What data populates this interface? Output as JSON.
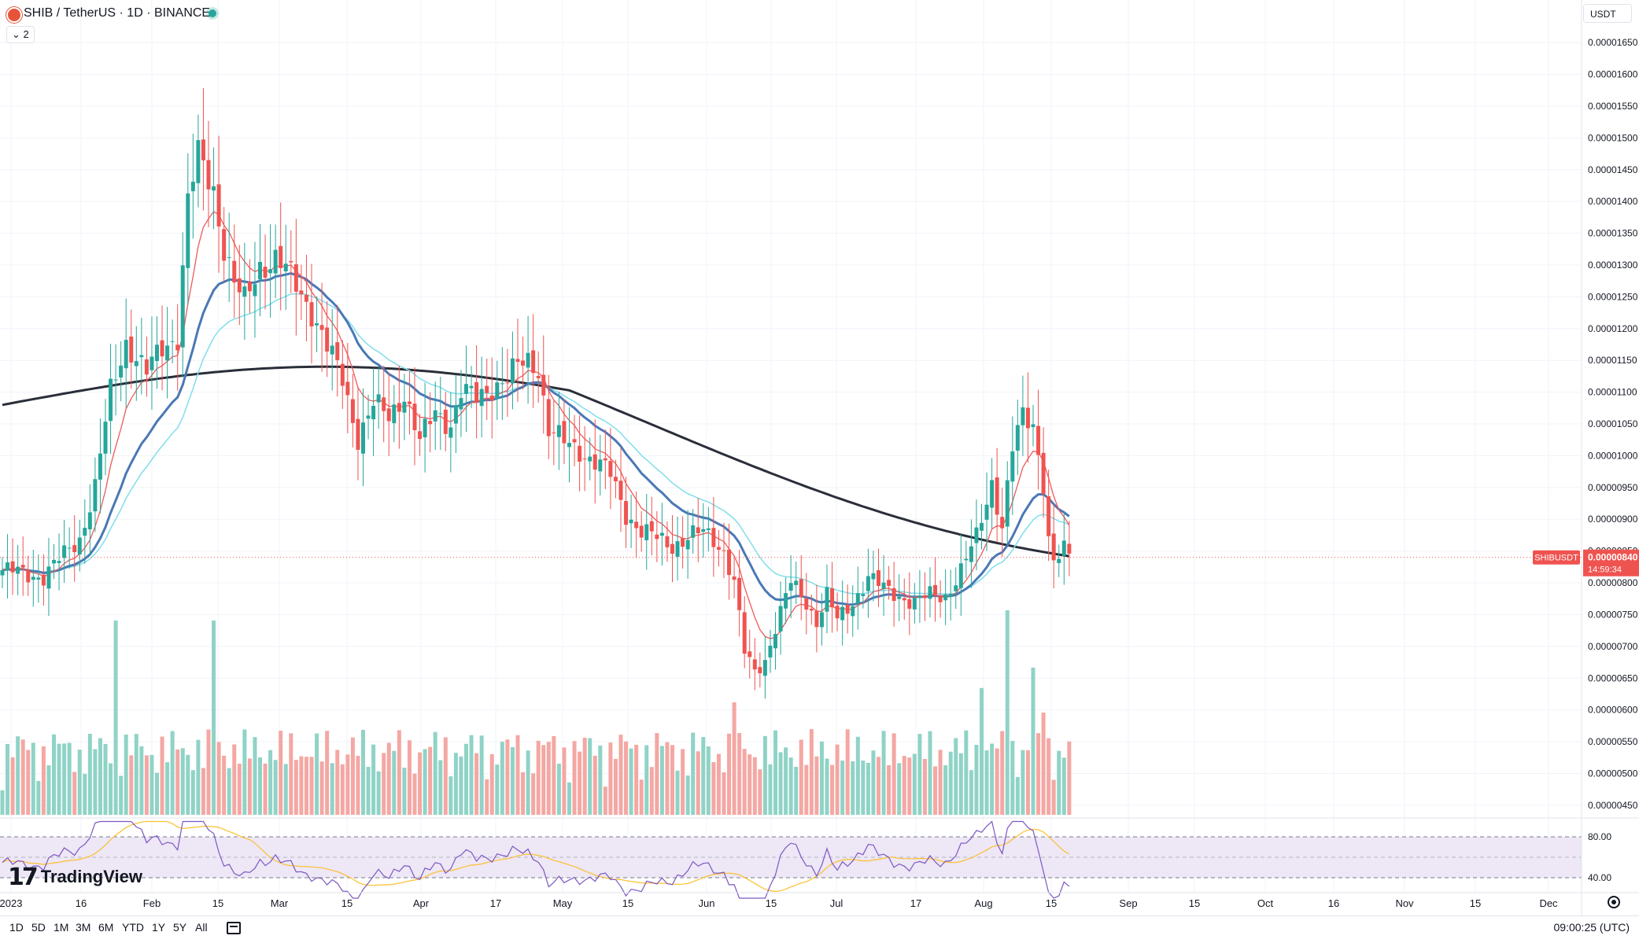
{
  "header": {
    "symbol_title": "SHIB / TetherUS · 1D · BINANCE",
    "indicator_count": "2",
    "currency": "USDT"
  },
  "colors": {
    "up": "#26a69a",
    "down": "#ef5350",
    "vol_up": "#8fd3c6",
    "vol_down": "#f4a7a3",
    "ma_fast": "#f05a5a",
    "ma_mid": "#4a78b5",
    "ma_light": "#80deea",
    "ma_slow": "#2a2e39",
    "rsi_line": "#7e57c2",
    "rsi_ma": "#fbc02d",
    "rsi_band": "#ede7f6"
  },
  "chart_data": {
    "type": "candlestick",
    "pair": "SHIBUSDT",
    "y_ticks": [
      "0.00001650",
      "0.00001600",
      "0.00001550",
      "0.00001500",
      "0.00001450",
      "0.00001400",
      "0.00001350",
      "0.00001300",
      "0.00001250",
      "0.00001200",
      "0.00001150",
      "0.00001100",
      "0.00001050",
      "0.00001000",
      "0.00000950",
      "0.00000900",
      "0.00000850",
      "0.00000800",
      "0.00000750",
      "0.00000700",
      "0.00000650",
      "0.00000600",
      "0.00000550",
      "0.00000500",
      "0.00000450"
    ],
    "ylim": [
      4.4e-06,
      1.665e-05
    ],
    "x_ticks": [
      "2023",
      "16",
      "Feb",
      "15",
      "Mar",
      "15",
      "Apr",
      "17",
      "May",
      "15",
      "Jun",
      "15",
      "Jul",
      "17",
      "Aug",
      "15",
      "Sep",
      "15",
      "Oct",
      "16",
      "Nov",
      "15",
      "Dec"
    ],
    "last_price_label": "SHIBUSDT",
    "last_price": "0.00000840",
    "countdown": "14:59:34",
    "rsi_levels": [
      "80.00",
      "40.00"
    ],
    "close_path": [
      [
        0,
        8.2e-06
      ],
      [
        8,
        8.1e-06
      ],
      [
        15,
        8.7e-06
      ],
      [
        18,
        9.5e-06
      ],
      [
        21,
        1.1e-05
      ],
      [
        24,
        1.18e-05
      ],
      [
        28,
        1.13e-05
      ],
      [
        31,
        1.17e-05
      ],
      [
        34,
        1.19e-05
      ],
      [
        36,
        1.4e-05
      ],
      [
        38,
        1.47e-05
      ],
      [
        41,
        1.42e-05
      ],
      [
        43,
        1.33e-05
      ],
      [
        45,
        1.27e-05
      ],
      [
        47,
        1.24e-05
      ],
      [
        50,
        1.3e-05
      ],
      [
        53,
        1.31e-05
      ],
      [
        56,
        1.28e-05
      ],
      [
        60,
        1.23e-05
      ],
      [
        63,
        1.17e-05
      ],
      [
        66,
        1.12e-05
      ],
      [
        69,
        1.03e-05
      ],
      [
        72,
        1.08e-05
      ],
      [
        75,
        1.06e-05
      ],
      [
        78,
        1.1e-05
      ],
      [
        81,
        1.02e-05
      ],
      [
        84,
        1.07e-05
      ],
      [
        87,
        1.05e-05
      ],
      [
        89,
        1.1e-05
      ],
      [
        92,
        1.09e-05
      ],
      [
        95,
        1.11e-05
      ],
      [
        98,
        1.12e-05
      ],
      [
        100,
        1.14e-05
      ],
      [
        102,
        1.15e-05
      ],
      [
        104,
        1.14e-05
      ],
      [
        106,
        1.04e-05
      ],
      [
        109,
        1.02e-05
      ],
      [
        112,
        1.01e-05
      ],
      [
        115,
        9.9e-06
      ],
      [
        118,
        9.7e-06
      ],
      [
        121,
        9.1e-06
      ],
      [
        124,
        8.8e-06
      ],
      [
        127,
        8.7e-06
      ],
      [
        130,
        8.6e-06
      ],
      [
        133,
        8.7e-06
      ],
      [
        136,
        8.8e-06
      ],
      [
        138,
        8.7e-06
      ],
      [
        140,
        8.5e-06
      ],
      [
        142,
        8e-06
      ],
      [
        144,
        6.9e-06
      ],
      [
        146,
        6.6e-06
      ],
      [
        148,
        6.8e-06
      ],
      [
        150,
        7.3e-06
      ],
      [
        153,
        8e-06
      ],
      [
        156,
        7.7e-06
      ],
      [
        158,
        7.4e-06
      ],
      [
        160,
        7.8e-06
      ],
      [
        162,
        7.4e-06
      ],
      [
        165,
        7.7e-06
      ],
      [
        168,
        8.1e-06
      ],
      [
        171,
        7.9e-06
      ],
      [
        174,
        7.8e-06
      ],
      [
        177,
        7.7e-06
      ],
      [
        180,
        7.8e-06
      ],
      [
        183,
        7.8e-06
      ],
      [
        186,
        8.2e-06
      ],
      [
        189,
        8.7e-06
      ],
      [
        192,
        9.6e-06
      ],
      [
        194,
        8.9e-06
      ],
      [
        196,
        1.01e-05
      ],
      [
        198,
        1.06e-05
      ],
      [
        200,
        1.05e-05
      ],
      [
        202,
        9.6e-06
      ],
      [
        203,
        8.7e-06
      ],
      [
        204,
        8.3e-06
      ],
      [
        206,
        8.5e-06
      ],
      [
        207,
        8.4e-06
      ]
    ],
    "big_volume": {
      "22": 0.95,
      "41": 0.95,
      "195": 1.0,
      "200": 0.72,
      "202": 0.5,
      "190": 0.62,
      "142": 0.55
    }
  },
  "timeframes": [
    "1D",
    "5D",
    "1M",
    "3M",
    "6M",
    "YTD",
    "1Y",
    "5Y",
    "All"
  ],
  "clock": "09:00:25 (UTC)",
  "logo_text": "TradingView"
}
